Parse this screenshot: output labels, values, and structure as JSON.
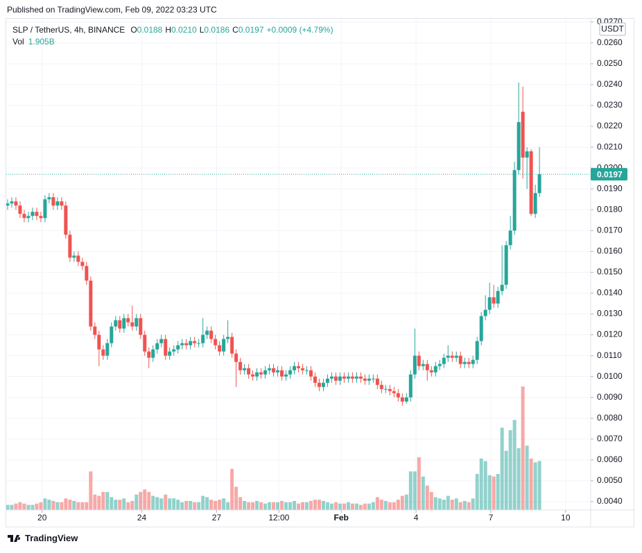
{
  "chart_data": {
    "type": "candlestick",
    "published": "Published on TradingView.com, Feb 09, 2022 03:23 UTC",
    "legend": {
      "symbol": "SLP / TetherUS, 4h, BINANCE",
      "items": [
        {
          "label": "O",
          "value": "0.0188"
        },
        {
          "label": "H",
          "value": "0.0210"
        },
        {
          "label": "L",
          "value": "0.0186"
        },
        {
          "label": "C",
          "value": "0.0197"
        }
      ],
      "change": "+0.0009 (+4.79%)",
      "vol_label": "Vol",
      "vol": "1.905B"
    },
    "currency": "USDT",
    "footer": "TradingView",
    "up_color": "#26a69a",
    "down_color": "#ef5350",
    "open": [
      0.0182,
      0.0183,
      0.0184,
      0.0182,
      0.0178,
      0.0176,
      0.0177,
      0.0179,
      0.0177,
      0.0176,
      0.0185,
      0.0186,
      0.0182,
      0.0184,
      0.0182,
      0.0168,
      0.0157,
      0.0158,
      0.0155,
      0.0153,
      0.0146,
      0.0124,
      0.012,
      0.0113,
      0.011,
      0.0116,
      0.0124,
      0.0127,
      0.0123,
      0.0128,
      0.0126,
      0.0124,
      0.0128,
      0.012,
      0.0112,
      0.0109,
      0.0113,
      0.0116,
      0.0118,
      0.011,
      0.0112,
      0.0113,
      0.0115,
      0.0116,
      0.0115,
      0.0117,
      0.0116,
      0.0116,
      0.012,
      0.0122,
      0.0118,
      0.0115,
      0.0112,
      0.0118,
      0.0119,
      0.0111,
      0.0107,
      0.0103,
      0.0104,
      0.0101,
      0.01,
      0.0102,
      0.0101,
      0.0103,
      0.0104,
      0.0102,
      0.0103,
      0.01,
      0.0101,
      0.0103,
      0.0105,
      0.0104,
      0.0103,
      0.0103,
      0.01,
      0.0097,
      0.0095,
      0.0097,
      0.0099,
      0.01,
      0.0098,
      0.01,
      0.0099,
      0.01,
      0.0099,
      0.01,
      0.0099,
      0.0098,
      0.0099,
      0.0099,
      0.0096,
      0.0094,
      0.0094,
      0.0093,
      0.0092,
      0.009,
      0.0088,
      0.009,
      0.0101,
      0.011,
      0.0105,
      0.0106,
      0.0103,
      0.0102,
      0.0105,
      0.0106,
      0.0109,
      0.011,
      0.0109,
      0.011,
      0.0106,
      0.0107,
      0.0106,
      0.0108,
      0.0117,
      0.0129,
      0.0132,
      0.0138,
      0.0135,
      0.0141,
      0.0144,
      0.0163,
      0.017,
      0.0199,
      0.0227,
      0.0205,
      0.0208,
      0.0178,
      0.0188
    ],
    "high": [
      0.0185,
      0.0186,
      0.0186,
      0.0184,
      0.018,
      0.0179,
      0.0181,
      0.0181,
      0.0179,
      0.0187,
      0.0188,
      0.0188,
      0.0186,
      0.0186,
      0.0184,
      0.017,
      0.016,
      0.016,
      0.0157,
      0.0155,
      0.0148,
      0.0126,
      0.0122,
      0.0115,
      0.0118,
      0.0126,
      0.0129,
      0.0129,
      0.013,
      0.013,
      0.0134,
      0.013,
      0.013,
      0.0122,
      0.0114,
      0.0115,
      0.0118,
      0.012,
      0.012,
      0.0114,
      0.0115,
      0.0117,
      0.0118,
      0.0118,
      0.0119,
      0.0119,
      0.0118,
      0.0128,
      0.0124,
      0.0124,
      0.012,
      0.0117,
      0.012,
      0.0127,
      0.0121,
      0.0113,
      0.0109,
      0.0106,
      0.0106,
      0.0103,
      0.0104,
      0.0104,
      0.0105,
      0.0106,
      0.0106,
      0.0105,
      0.0105,
      0.0103,
      0.0105,
      0.0107,
      0.0107,
      0.0106,
      0.0105,
      0.0105,
      0.0102,
      0.0099,
      0.0099,
      0.0101,
      0.0102,
      0.0102,
      0.0102,
      0.0102,
      0.0102,
      0.0102,
      0.0102,
      0.0102,
      0.0101,
      0.0101,
      0.0101,
      0.0101,
      0.0098,
      0.0096,
      0.0096,
      0.0095,
      0.0094,
      0.0092,
      0.0092,
      0.0103,
      0.0123,
      0.0112,
      0.0108,
      0.0108,
      0.0105,
      0.0107,
      0.0108,
      0.0111,
      0.0115,
      0.0112,
      0.0112,
      0.0112,
      0.0109,
      0.0109,
      0.011,
      0.0119,
      0.0131,
      0.0139,
      0.0145,
      0.0144,
      0.0143,
      0.0163,
      0.0165,
      0.0177,
      0.0203,
      0.0241,
      0.0239,
      0.021,
      0.0209,
      0.0192,
      0.021
    ],
    "low": [
      0.018,
      0.0181,
      0.018,
      0.0176,
      0.0174,
      0.0174,
      0.0175,
      0.0175,
      0.0174,
      0.0174,
      0.0183,
      0.018,
      0.018,
      0.018,
      0.0166,
      0.0155,
      0.0155,
      0.0153,
      0.0151,
      0.0144,
      0.0122,
      0.0118,
      0.0105,
      0.0108,
      0.0108,
      0.0114,
      0.0122,
      0.0121,
      0.0121,
      0.0124,
      0.0122,
      0.0122,
      0.0118,
      0.011,
      0.0104,
      0.0107,
      0.0111,
      0.0114,
      0.0108,
      0.0108,
      0.011,
      0.0111,
      0.0113,
      0.0113,
      0.0113,
      0.0114,
      0.0114,
      0.0114,
      0.0118,
      0.0116,
      0.0113,
      0.011,
      0.011,
      0.0116,
      0.0109,
      0.0095,
      0.0101,
      0.0101,
      0.0099,
      0.0098,
      0.0098,
      0.0099,
      0.0099,
      0.0101,
      0.01,
      0.01,
      0.0098,
      0.0098,
      0.0099,
      0.0101,
      0.0102,
      0.0101,
      0.0101,
      0.0098,
      0.0095,
      0.0093,
      0.0093,
      0.0095,
      0.0097,
      0.0096,
      0.0096,
      0.0097,
      0.0097,
      0.0097,
      0.0097,
      0.0097,
      0.0096,
      0.0096,
      0.0097,
      0.0094,
      0.0092,
      0.0092,
      0.0091,
      0.009,
      0.0088,
      0.0086,
      0.0087,
      0.0088,
      0.0099,
      0.0103,
      0.0103,
      0.0098,
      0.01,
      0.01,
      0.0103,
      0.0104,
      0.0107,
      0.0107,
      0.0107,
      0.0104,
      0.0104,
      0.0104,
      0.0104,
      0.0106,
      0.0115,
      0.0127,
      0.013,
      0.0133,
      0.0133,
      0.0139,
      0.0142,
      0.0161,
      0.0168,
      0.0197,
      0.0195,
      0.019,
      0.0177,
      0.0176,
      0.0186
    ],
    "close": [
      0.0183,
      0.0184,
      0.0182,
      0.0178,
      0.0176,
      0.0177,
      0.0179,
      0.0177,
      0.0176,
      0.0185,
      0.0186,
      0.0182,
      0.0184,
      0.0182,
      0.0168,
      0.0157,
      0.0158,
      0.0155,
      0.0153,
      0.0146,
      0.0124,
      0.012,
      0.0113,
      0.011,
      0.0116,
      0.0124,
      0.0127,
      0.0123,
      0.0128,
      0.0126,
      0.0124,
      0.0128,
      0.012,
      0.0112,
      0.0109,
      0.0113,
      0.0116,
      0.0118,
      0.011,
      0.0112,
      0.0113,
      0.0115,
      0.0116,
      0.0115,
      0.0117,
      0.0116,
      0.0116,
      0.012,
      0.0122,
      0.0118,
      0.0115,
      0.0112,
      0.0118,
      0.0119,
      0.0111,
      0.0107,
      0.0103,
      0.0104,
      0.0101,
      0.01,
      0.0102,
      0.0101,
      0.0103,
      0.0104,
      0.0102,
      0.0103,
      0.01,
      0.0101,
      0.0103,
      0.0105,
      0.0104,
      0.0103,
      0.0103,
      0.01,
      0.0097,
      0.0095,
      0.0097,
      0.0099,
      0.01,
      0.0098,
      0.01,
      0.0099,
      0.01,
      0.0099,
      0.01,
      0.0099,
      0.0098,
      0.0099,
      0.0099,
      0.0096,
      0.0094,
      0.0094,
      0.0093,
      0.0092,
      0.009,
      0.0088,
      0.009,
      0.0101,
      0.011,
      0.0105,
      0.0106,
      0.0103,
      0.0102,
      0.0105,
      0.0106,
      0.0109,
      0.011,
      0.0109,
      0.011,
      0.0106,
      0.0107,
      0.0106,
      0.0108,
      0.0117,
      0.0129,
      0.0132,
      0.0138,
      0.0135,
      0.0141,
      0.0144,
      0.0163,
      0.017,
      0.0199,
      0.0222,
      0.0205,
      0.0208,
      0.0178,
      0.0188,
      0.0197
    ],
    "volume": [
      0.2,
      0.2,
      0.25,
      0.3,
      0.25,
      0.2,
      0.2,
      0.25,
      0.3,
      0.45,
      0.4,
      0.35,
      0.3,
      0.3,
      0.45,
      0.4,
      0.35,
      0.3,
      0.3,
      0.3,
      1.5,
      0.6,
      0.55,
      0.7,
      0.7,
      0.5,
      0.4,
      0.4,
      0.45,
      0.3,
      0.35,
      0.6,
      0.7,
      0.8,
      0.7,
      0.55,
      0.5,
      0.45,
      0.6,
      0.45,
      0.45,
      0.4,
      0.3,
      0.35,
      0.35,
      0.3,
      0.3,
      0.55,
      0.5,
      0.4,
      0.35,
      0.4,
      0.45,
      0.3,
      1.6,
      0.9,
      0.5,
      0.35,
      0.3,
      0.3,
      0.35,
      0.3,
      0.25,
      0.3,
      0.3,
      0.3,
      0.35,
      0.3,
      0.3,
      0.35,
      0.25,
      0.3,
      0.3,
      0.35,
      0.4,
      0.4,
      0.35,
      0.3,
      0.25,
      0.3,
      0.25,
      0.25,
      0.3,
      0.25,
      0.25,
      0.2,
      0.25,
      0.25,
      0.3,
      0.5,
      0.4,
      0.35,
      0.3,
      0.3,
      0.4,
      0.55,
      0.6,
      1.5,
      1.5,
      2.05,
      1.3,
      0.95,
      0.7,
      0.5,
      0.45,
      0.4,
      0.55,
      0.4,
      0.45,
      0.3,
      0.35,
      0.3,
      0.45,
      1.4,
      2.0,
      1.9,
      1.35,
      1.3,
      1.4,
      3.2,
      2.3,
      3.1,
      3.5,
      2.4,
      4.8,
      2.5,
      2.0,
      1.85,
      1.905
    ],
    "last_price": {
      "value": 0.0197,
      "label": "0.0197"
    },
    "ylim": [
      0.0036,
      0.02716
    ],
    "yticks": [
      {
        "value": 0.004,
        "label": "0.0040"
      },
      {
        "value": 0.005,
        "label": "0.0050"
      },
      {
        "value": 0.006,
        "label": "0.0060"
      },
      {
        "value": 0.007,
        "label": "0.0070"
      },
      {
        "value": 0.008,
        "label": "0.0080"
      },
      {
        "value": 0.009,
        "label": "0.0090"
      },
      {
        "value": 0.01,
        "label": "0.0100"
      },
      {
        "value": 0.011,
        "label": "0.0110"
      },
      {
        "value": 0.012,
        "label": "0.0120"
      },
      {
        "value": 0.013,
        "label": "0.0130"
      },
      {
        "value": 0.014,
        "label": "0.0140"
      },
      {
        "value": 0.015,
        "label": "0.0150"
      },
      {
        "value": 0.016,
        "label": "0.0160"
      },
      {
        "value": 0.017,
        "label": "0.0170"
      },
      {
        "value": 0.018,
        "label": "0.0180"
      },
      {
        "value": 0.019,
        "label": "0.0190"
      },
      {
        "value": 0.02,
        "label": "0.0200"
      },
      {
        "value": 0.021,
        "label": "0.0210"
      },
      {
        "value": 0.022,
        "label": "0.0220"
      },
      {
        "value": 0.023,
        "label": "0.0230"
      },
      {
        "value": 0.024,
        "label": "0.0240"
      },
      {
        "value": 0.025,
        "label": "0.0250"
      },
      {
        "value": 0.026,
        "label": "0.0260"
      },
      {
        "value": 0.027,
        "label": "0.0270"
      }
    ],
    "xlim": [
      -0.33,
      140.33
    ],
    "xticks": [
      {
        "value": 8.3,
        "label": "20"
      },
      {
        "value": 32.3,
        "label": "24"
      },
      {
        "value": 50.3,
        "label": "27"
      },
      {
        "value": 65.3,
        "label": "12:00"
      },
      {
        "value": 80.3,
        "label": "Feb"
      },
      {
        "value": 98.3,
        "label": "4"
      },
      {
        "value": 116.3,
        "label": "7"
      },
      {
        "value": 134.3,
        "label": "10"
      }
    ],
    "grid": true
  }
}
